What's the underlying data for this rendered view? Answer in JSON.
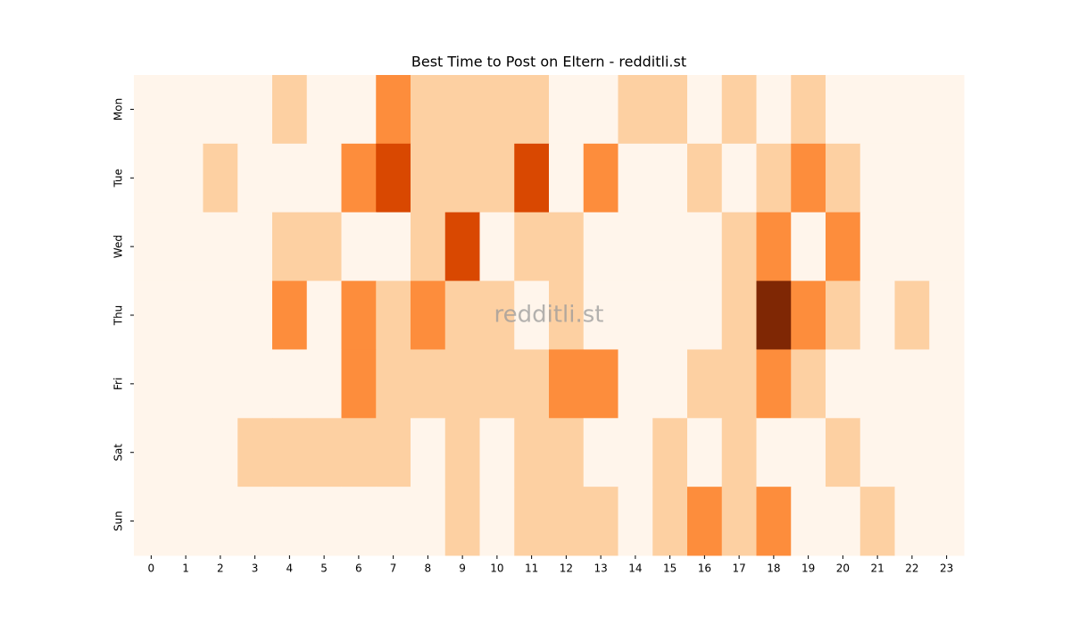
{
  "chart_data": {
    "type": "heatmap",
    "title": "Best Time to Post on Eltern - redditli.st",
    "watermark": "redditli.st",
    "x_categories": [
      "0",
      "1",
      "2",
      "3",
      "4",
      "5",
      "6",
      "7",
      "8",
      "9",
      "10",
      "11",
      "12",
      "13",
      "14",
      "15",
      "16",
      "17",
      "18",
      "19",
      "20",
      "21",
      "22",
      "23"
    ],
    "y_categories": [
      "Mon",
      "Tue",
      "Wed",
      "Thu",
      "Fri",
      "Sat",
      "Sun"
    ],
    "values": [
      [
        0,
        0,
        0,
        0,
        1,
        0,
        0,
        2,
        1,
        1,
        1,
        1,
        0,
        0,
        1,
        1,
        0,
        1,
        0,
        1,
        0,
        0,
        0,
        0
      ],
      [
        0,
        0,
        1,
        0,
        0,
        0,
        2,
        3,
        1,
        1,
        1,
        3,
        0,
        2,
        0,
        0,
        1,
        0,
        1,
        2,
        1,
        0,
        0,
        0
      ],
      [
        0,
        0,
        0,
        0,
        1,
        1,
        0,
        0,
        1,
        3,
        0,
        1,
        1,
        0,
        0,
        0,
        0,
        1,
        2,
        0,
        2,
        0,
        0,
        0
      ],
      [
        0,
        0,
        0,
        0,
        2,
        0,
        2,
        1,
        2,
        1,
        1,
        0,
        1,
        0,
        0,
        0,
        0,
        1,
        4,
        2,
        1,
        0,
        1,
        0
      ],
      [
        0,
        0,
        0,
        0,
        0,
        0,
        2,
        1,
        1,
        1,
        1,
        1,
        2,
        2,
        0,
        0,
        1,
        1,
        2,
        1,
        0,
        0,
        0,
        0
      ],
      [
        0,
        0,
        0,
        1,
        1,
        1,
        1,
        1,
        0,
        1,
        0,
        1,
        1,
        0,
        0,
        1,
        0,
        1,
        0,
        0,
        1,
        0,
        0,
        0
      ],
      [
        0,
        0,
        0,
        0,
        0,
        0,
        0,
        0,
        0,
        1,
        0,
        1,
        1,
        1,
        0,
        1,
        2,
        1,
        2,
        0,
        0,
        1,
        0,
        0
      ]
    ],
    "vmin": 0,
    "vmax": 4,
    "colorscale": [
      "#fff5eb",
      "#fdd0a2",
      "#fd8d3c",
      "#d94801",
      "#7f2704"
    ]
  }
}
